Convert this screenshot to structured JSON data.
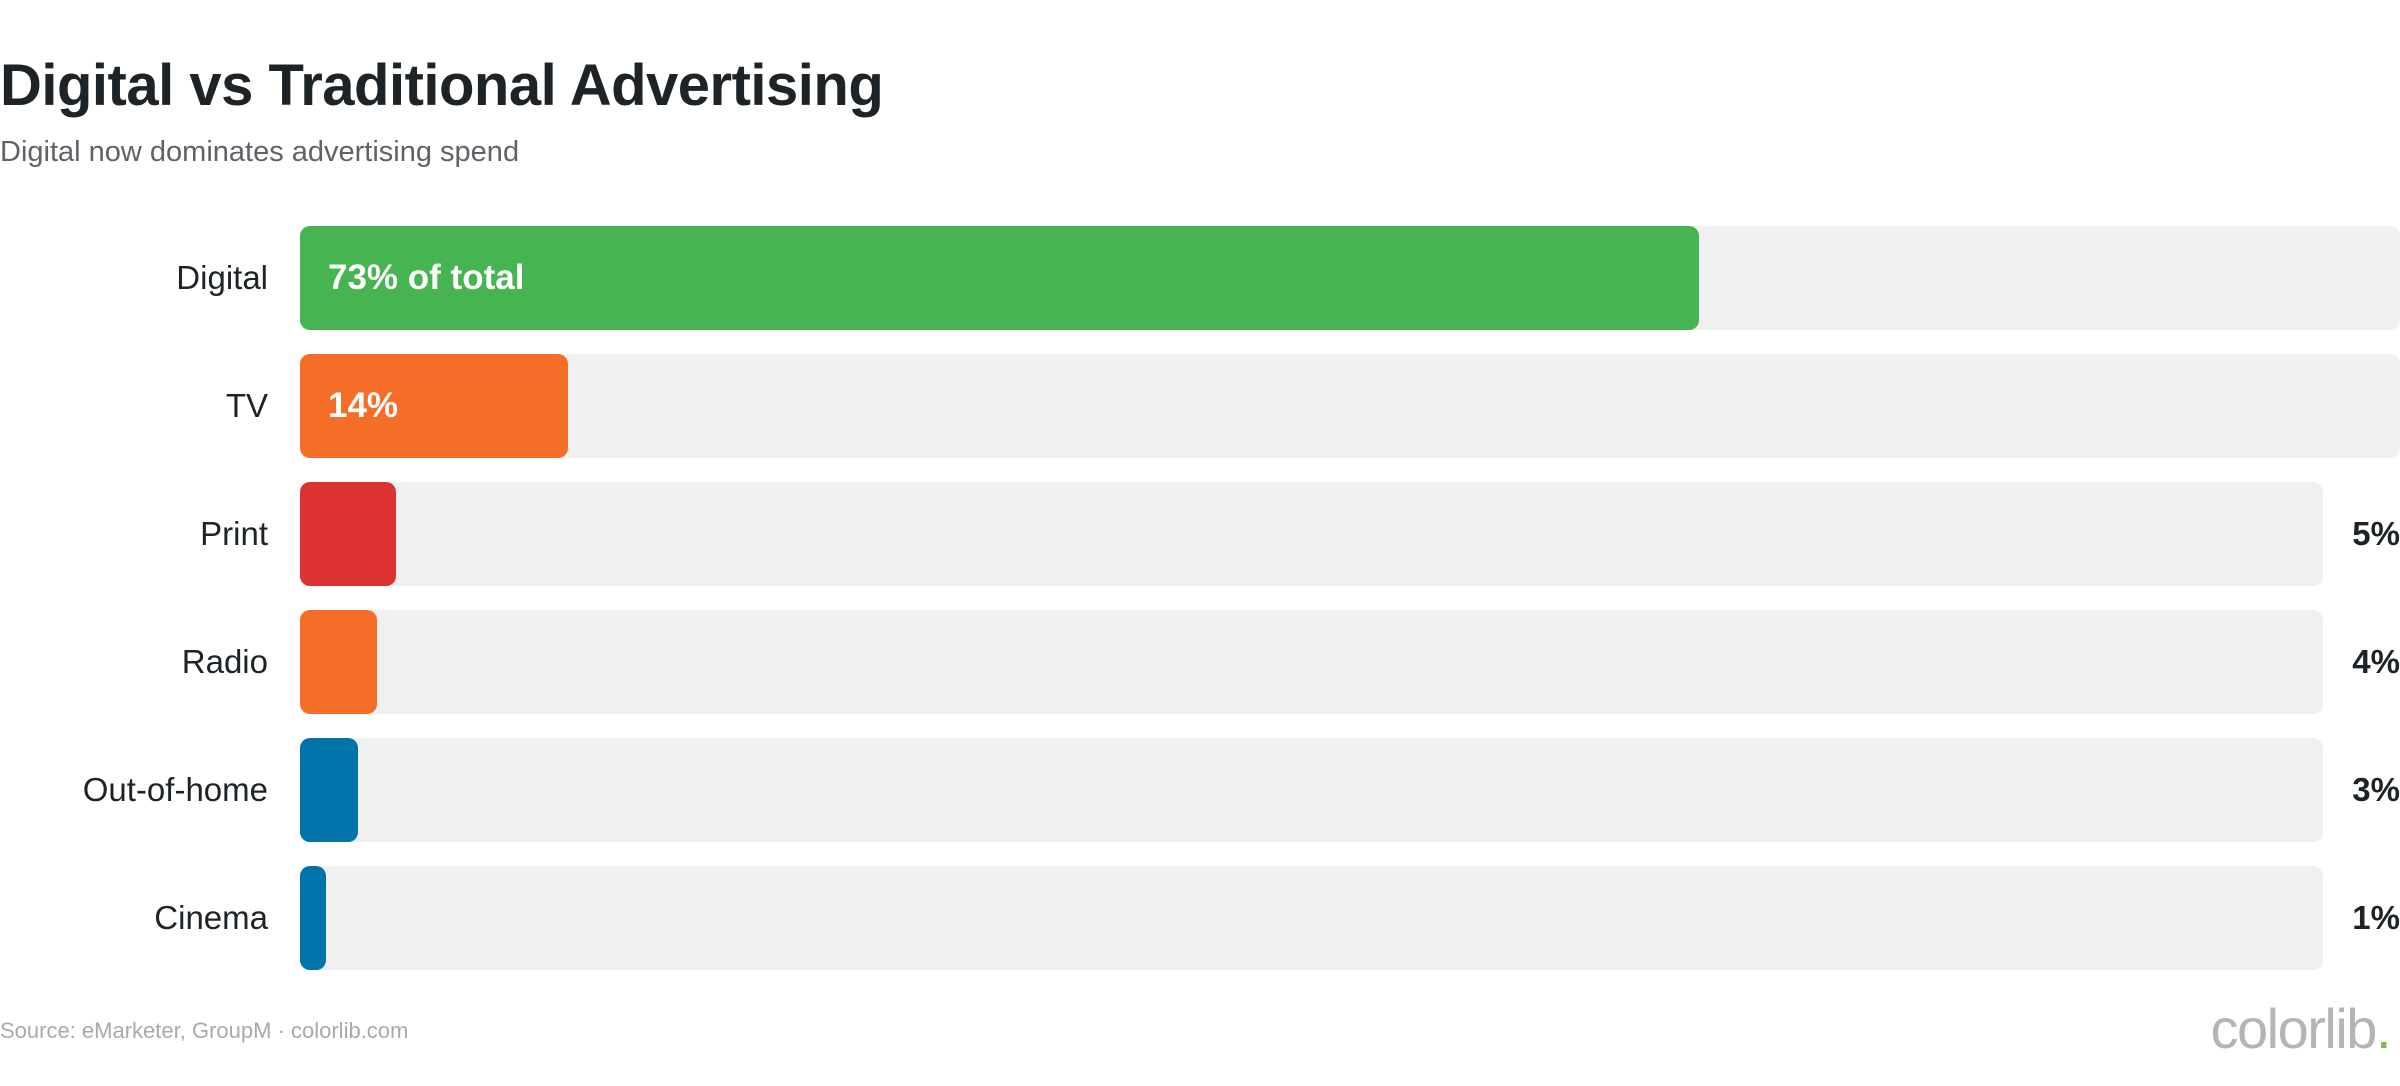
{
  "chart_data": {
    "type": "bar",
    "orientation": "horizontal",
    "title": "Digital vs Traditional Advertising",
    "subtitle": "Digital now dominates advertising spend",
    "xlim": [
      0,
      100
    ],
    "categories": [
      "Digital",
      "TV",
      "Print",
      "Radio",
      "Out-of-home",
      "Cinema"
    ],
    "values": [
      73,
      14,
      5,
      4,
      3,
      1
    ],
    "value_labels": [
      "73% of total",
      "14%",
      "5%",
      "4%",
      "3%",
      "1%"
    ],
    "label_inside_bar": [
      true,
      true,
      false,
      false,
      false,
      false
    ],
    "colors": [
      "#46b450",
      "#f56e28",
      "#dc3232",
      "#f56e28",
      "#0073aa",
      "#0073aa"
    ],
    "track_color": "#f0f0f0",
    "grid": false,
    "legend": "none"
  },
  "footer": {
    "source": "Source: eMarketer, GroupM · colorlib.com",
    "brand": "colorlib",
    "brand_dot": "."
  }
}
